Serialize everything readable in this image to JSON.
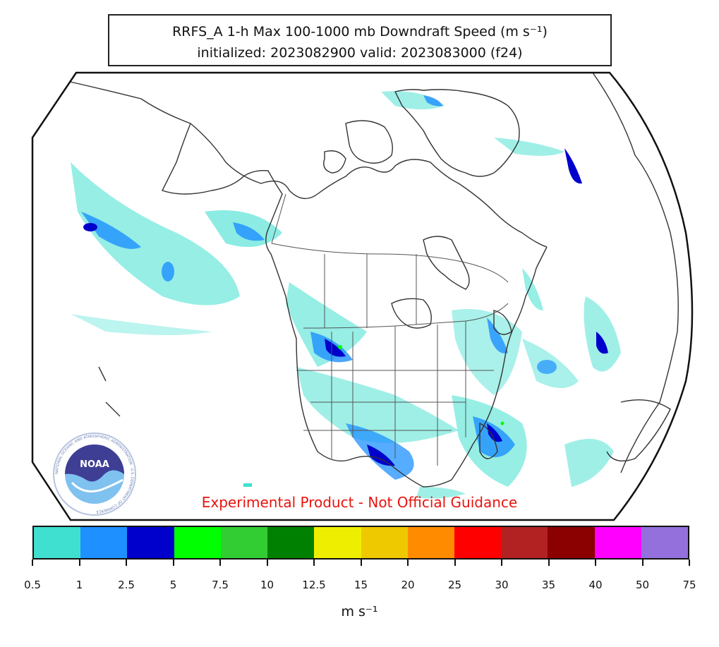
{
  "title": {
    "line1": "RRFS_A 1-h Max 100-1000 mb Downdraft Speed (m s⁻¹)",
    "line2": "initialized: 2023082900 valid: 2023083000 (f24)"
  },
  "disclaimer": "Experimental Product - Not Official Guidance",
  "logo": {
    "name": "NOAA",
    "ring_text": "NATIONAL OCEANIC AND ATMOSPHERIC ADMINISTRATION · U.S. DEPARTMENT OF COMMERCE"
  },
  "colorbar": {
    "units": "m s⁻¹",
    "ticks": [
      "0.5",
      "1",
      "2.5",
      "5",
      "7.5",
      "10",
      "12.5",
      "15",
      "20",
      "25",
      "30",
      "35",
      "40",
      "50",
      "75"
    ],
    "colors": [
      "#40e0d0",
      "#1e90ff",
      "#0000cd",
      "#00ff00",
      "#32cd32",
      "#008000",
      "#eeee00",
      "#eec900",
      "#ff8c00",
      "#ff0000",
      "#b22222",
      "#8b0000",
      "#ff00ff",
      "#9370db"
    ]
  },
  "map": {
    "projection": "polar-style conic",
    "region": "North America",
    "field_colors": {
      "light": "#40e0d0",
      "medium": "#1e90ff",
      "strong": "#0000cd",
      "peak": "#00ff00"
    },
    "coastline_color": "#333333"
  }
}
